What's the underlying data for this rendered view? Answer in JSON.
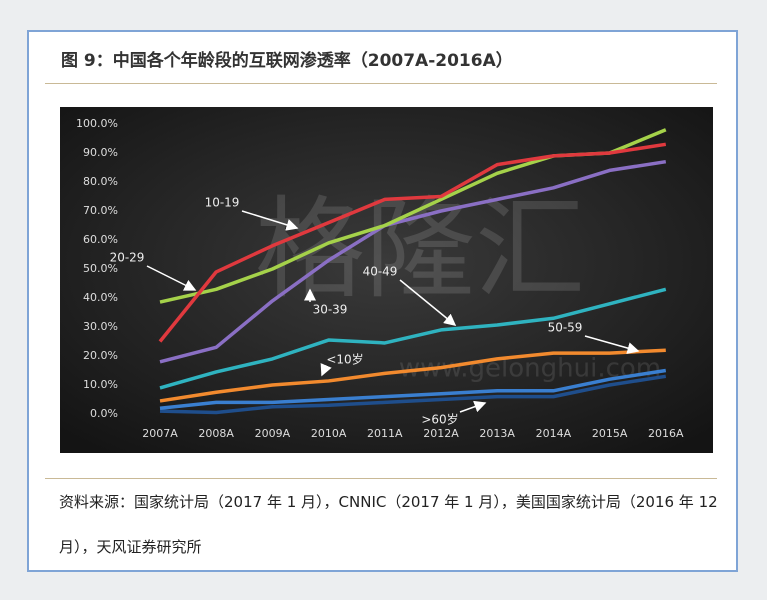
{
  "title": "图 9：中国各个年龄段的互联网渗透率（2007A-2016A）",
  "chart_data": {
    "type": "line",
    "watermark": "格隆汇",
    "watermark_url": "www.gelonghui.com",
    "categories": [
      "2007A",
      "2008A",
      "2009A",
      "2010A",
      "2011A",
      "2012A",
      "2013A",
      "2014A",
      "2015A",
      "2016A"
    ],
    "series": [
      {
        "name": "10-19",
        "color": "#e0393e",
        "values": [
          25,
          49,
          58,
          66,
          74,
          75,
          86,
          89,
          90,
          93
        ]
      },
      {
        "name": "20-29",
        "color": "#a5d24a",
        "values": [
          38.6,
          43,
          50,
          59,
          65,
          74,
          83,
          89,
          90,
          98
        ]
      },
      {
        "name": "30-39",
        "color": "#8a6fc4",
        "values": [
          18,
          23,
          39,
          53,
          65,
          70,
          74,
          78,
          84,
          87
        ]
      },
      {
        "name": "40-49",
        "color": "#2fb3c0",
        "values": [
          9,
          14.5,
          19,
          25.5,
          24.5,
          29,
          30.7,
          33,
          38,
          43
        ]
      },
      {
        "name": "50-59",
        "color": "#f28a2e",
        "values": [
          4.5,
          7.5,
          10,
          11.4,
          14,
          16,
          19,
          21,
          21,
          22
        ]
      },
      {
        "name": "<10岁",
        "color": "#3a7fd0",
        "values": [
          2,
          4,
          4,
          5,
          6,
          7,
          8,
          8,
          12,
          15
        ]
      },
      {
        "name": ">60岁",
        "color": "#1f4e8c",
        "values": [
          1,
          0.5,
          2.5,
          3,
          4,
          5,
          6,
          6,
          10,
          13
        ]
      }
    ],
    "ylim": [
      0,
      100
    ],
    "yticks": [
      {
        "value": 0,
        "label": "0.0%"
      },
      {
        "value": 10,
        "label": "10.0%"
      },
      {
        "value": 20,
        "label": "20.0%"
      },
      {
        "value": 30,
        "label": "30.0%"
      },
      {
        "value": 40,
        "label": "40.0%"
      },
      {
        "value": 50,
        "label": "50.0%"
      },
      {
        "value": 60,
        "label": "60.0%"
      },
      {
        "value": 70,
        "label": "70.0%"
      },
      {
        "value": 80,
        "label": "80.0%"
      },
      {
        "value": 90,
        "label": "90.0%"
      },
      {
        "value": 100,
        "label": "100.0%"
      }
    ],
    "grid": false
  },
  "source": "资料来源：国家统计局（2017 年 1 月），CNNIC（2017 年 1 月），美国国家统计局（2016 年 12 月），天风证券研究所"
}
